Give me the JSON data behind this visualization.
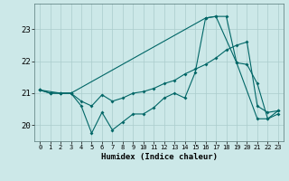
{
  "title": "",
  "xlabel": "Humidex (Indice chaleur)",
  "ylabel": "",
  "bg_color": "#cce8e8",
  "line_color": "#006666",
  "grid_color": "#aacccc",
  "xlim": [
    -0.5,
    23.5
  ],
  "ylim": [
    19.5,
    23.8
  ],
  "yticks": [
    20,
    21,
    22,
    23
  ],
  "xticks": [
    0,
    1,
    2,
    3,
    4,
    5,
    6,
    7,
    8,
    9,
    10,
    11,
    12,
    13,
    14,
    15,
    16,
    17,
    18,
    19,
    20,
    21,
    22,
    23
  ],
  "line1_x": [
    0,
    1,
    2,
    3,
    4,
    5,
    6,
    7,
    8,
    9,
    10,
    11,
    12,
    13,
    14,
    15,
    16,
    17,
    18,
    19,
    20,
    21,
    22,
    23
  ],
  "line1_y": [
    21.1,
    21.0,
    21.0,
    21.0,
    20.6,
    19.75,
    20.4,
    19.85,
    20.1,
    20.35,
    20.35,
    20.55,
    20.85,
    21.0,
    20.85,
    21.65,
    23.35,
    23.4,
    23.4,
    21.95,
    21.9,
    21.3,
    20.2,
    20.35
  ],
  "line2_x": [
    0,
    1,
    2,
    3,
    4,
    5,
    6,
    7,
    8,
    9,
    10,
    11,
    12,
    13,
    14,
    15,
    16,
    17,
    18,
    19,
    20,
    21,
    22,
    23
  ],
  "line2_y": [
    21.1,
    21.0,
    21.0,
    21.0,
    20.75,
    20.6,
    20.95,
    20.75,
    20.85,
    21.0,
    21.05,
    21.15,
    21.3,
    21.4,
    21.6,
    21.75,
    21.9,
    22.1,
    22.35,
    22.5,
    22.6,
    20.6,
    20.4,
    20.45
  ],
  "line3_x": [
    0,
    2,
    3,
    16,
    17,
    19,
    21,
    22,
    23
  ],
  "line3_y": [
    21.1,
    21.0,
    21.0,
    23.35,
    23.4,
    21.95,
    20.2,
    20.2,
    20.45
  ]
}
